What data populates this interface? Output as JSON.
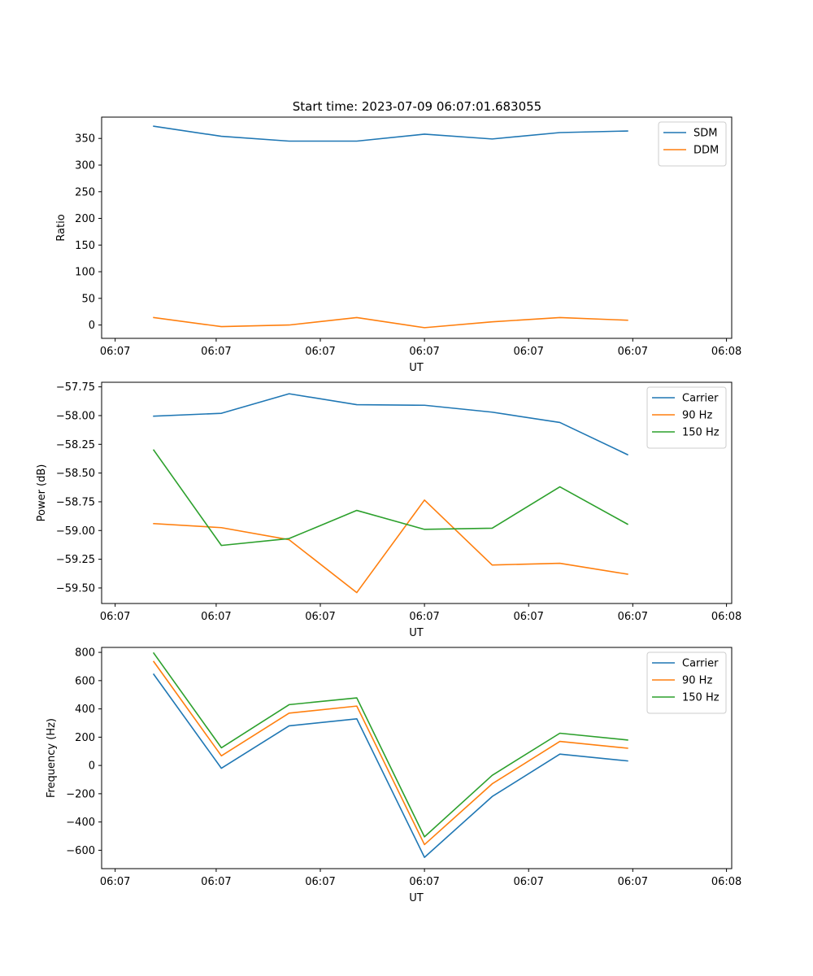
{
  "figure": {
    "title": "Start time: 2023-07-09 06:07:01.683055"
  },
  "colors": {
    "blue": "#1f77b4",
    "orange": "#ff7f0e",
    "green": "#2ca02c",
    "axis": "#000000",
    "legend_border": "#cccccc"
  },
  "chart_data": [
    {
      "type": "line",
      "title": "Start time: 2023-07-09 06:07:01.683055",
      "xlabel": "UT",
      "ylabel": "Ratio",
      "x": [
        0.5,
        1.15,
        1.8,
        2.45,
        3.1,
        3.75,
        4.4,
        5.05
      ],
      "xlim": [
        0,
        6.05
      ],
      "ylim": [
        -25,
        390
      ],
      "xticks": [
        0.13,
        1.1,
        2.1,
        3.1,
        4.1,
        5.1,
        6.0
      ],
      "xtick_labels": [
        "06:07",
        "06:07",
        "06:07",
        "06:07",
        "06:07",
        "06:07",
        "06:08"
      ],
      "yticks": [
        0,
        50,
        100,
        150,
        200,
        250,
        300,
        350
      ],
      "ytick_labels": [
        "0",
        "50",
        "100",
        "150",
        "200",
        "250",
        "300",
        "350"
      ],
      "legend_position": "top-right",
      "series": [
        {
          "name": "SDM",
          "color": "#1f77b4",
          "values": [
            373,
            354,
            345,
            345,
            358,
            349,
            361,
            364
          ]
        },
        {
          "name": "DDM",
          "color": "#ff7f0e",
          "values": [
            14,
            -3,
            0,
            14,
            -5,
            6,
            14,
            9
          ]
        }
      ]
    },
    {
      "type": "line",
      "title": "",
      "xlabel": "UT",
      "ylabel": "Power (dB)",
      "x": [
        0.5,
        1.15,
        1.8,
        2.45,
        3.1,
        3.75,
        4.4,
        5.05
      ],
      "xlim": [
        0,
        6.05
      ],
      "ylim": [
        -59.635,
        -57.71
      ],
      "xticks": [
        0.13,
        1.1,
        2.1,
        3.1,
        4.1,
        5.1,
        6.0
      ],
      "xtick_labels": [
        "06:07",
        "06:07",
        "06:07",
        "06:07",
        "06:07",
        "06:07",
        "06:08"
      ],
      "yticks": [
        -57.75,
        -58.0,
        -58.25,
        -58.5,
        -58.75,
        -59.0,
        -59.25,
        -59.5
      ],
      "ytick_labels": [
        "−57.75",
        "−58.00",
        "−58.25",
        "−58.50",
        "−58.75",
        "−59.00",
        "−59.25",
        "−59.50"
      ],
      "legend_position": "top-right",
      "series": [
        {
          "name": "Carrier",
          "color": "#1f77b4",
          "values": [
            -58.005,
            -57.98,
            -57.81,
            -57.905,
            -57.91,
            -57.97,
            -58.06,
            -58.34
          ]
        },
        {
          "name": "90 Hz",
          "color": "#ff7f0e",
          "values": [
            -58.94,
            -58.975,
            -59.08,
            -59.54,
            -58.735,
            -59.3,
            -59.285,
            -59.38
          ]
        },
        {
          "name": "150 Hz",
          "color": "#2ca02c",
          "values": [
            -58.3,
            -59.13,
            -59.07,
            -58.825,
            -58.99,
            -58.98,
            -58.62,
            -58.945
          ]
        }
      ]
    },
    {
      "type": "line",
      "title": "",
      "xlabel": "UT",
      "ylabel": "Frequency (Hz)",
      "x": [
        0.5,
        1.15,
        1.8,
        2.45,
        3.1,
        3.75,
        4.4,
        5.05
      ],
      "xlim": [
        0,
        6.05
      ],
      "ylim": [
        -730,
        835
      ],
      "xticks": [
        0.13,
        1.1,
        2.1,
        3.1,
        4.1,
        5.1,
        6.0
      ],
      "xtick_labels": [
        "06:07",
        "06:07",
        "06:07",
        "06:07",
        "06:07",
        "06:07",
        "06:08"
      ],
      "yticks": [
        800,
        600,
        400,
        200,
        0,
        -200,
        -400,
        -600
      ],
      "ytick_labels": [
        "800",
        "600",
        "400",
        "200",
        "0",
        "−200",
        "−400",
        "−600"
      ],
      "legend_position": "top-right",
      "series": [
        {
          "name": "Carrier",
          "color": "#1f77b4",
          "values": [
            645,
            -20,
            280,
            330,
            -650,
            -220,
            80,
            32
          ]
        },
        {
          "name": "90 Hz",
          "color": "#ff7f0e",
          "values": [
            735,
            68,
            370,
            420,
            -560,
            -130,
            170,
            122
          ]
        },
        {
          "name": "150 Hz",
          "color": "#2ca02c",
          "values": [
            795,
            125,
            430,
            478,
            -505,
            -70,
            228,
            180
          ]
        }
      ]
    }
  ]
}
